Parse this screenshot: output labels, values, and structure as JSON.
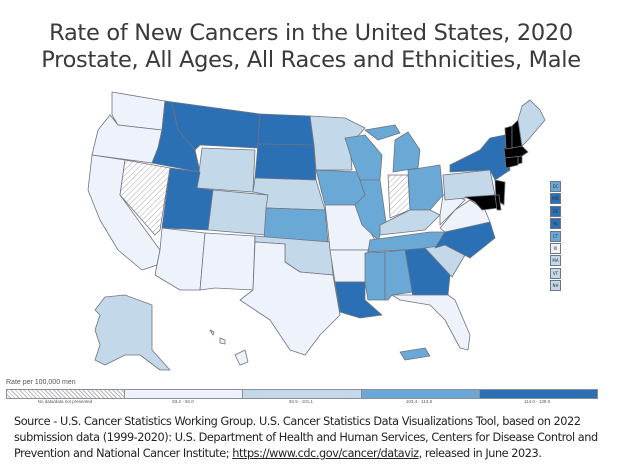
{
  "title_line1": "Rate of New Cancers in the United States, 2020",
  "title_line2": "Prostate, All Ages, All Races and Ethnicities, Male",
  "legend": {
    "title": "Rate per 100,000 men",
    "bins": [
      {
        "label": "No data/data not presented",
        "color": "hatch"
      },
      {
        "label": "83.2 - 92.0",
        "color": "#eef2fb"
      },
      {
        "label": "92.5 - 101.1",
        "color": "#c3d8e8"
      },
      {
        "label": "103.4 - 113.5",
        "color": "#6aa9d6"
      },
      {
        "label": "114.0 - 139.0",
        "color": "#2b70b5"
      }
    ]
  },
  "small_state_boxes": [
    {
      "abbr": "DC",
      "bin": 3
    },
    {
      "abbr": "MD",
      "bin": 4
    },
    {
      "abbr": "DE",
      "bin": 4
    },
    {
      "abbr": "NJ",
      "bin": 4
    },
    {
      "abbr": "CT",
      "bin": 3
    },
    {
      "abbr": "RI",
      "bin": 1
    },
    {
      "abbr": "MA",
      "bin": 2
    },
    {
      "abbr": "VT",
      "bin": 2
    },
    {
      "abbr": "NH",
      "bin": 2
    }
  ],
  "state_bins": {
    "WA": 1,
    "OR": 1,
    "CA": 1,
    "NV": 0,
    "ID": 4,
    "MT": 4,
    "WY": 2,
    "UT": 4,
    "CO": 2,
    "AZ": 1,
    "NM": 1,
    "ND": 4,
    "SD": 4,
    "NE": 2,
    "KS": 3,
    "OK": 2,
    "TX": 1,
    "MN": 2,
    "IA": 3,
    "MO": 1,
    "AR": 1,
    "LA": 4,
    "WI": 3,
    "IL": 3,
    "MI": 3,
    "IN": 0,
    "OH": 3,
    "KY": 2,
    "TN": 3,
    "MS": 3,
    "AL": 3,
    "GA": 4,
    "FL": 1,
    "SC": 2,
    "NC": 4,
    "VA": 1,
    "WV": 1,
    "PA": 2,
    "NY": 4,
    "ME": 2,
    "AK": 2,
    "HI": 1,
    "PR": 3
  },
  "source": {
    "text_before": "Source - U.S. Cancer Statistics Working Group. U.S. Cancer Statistics Data Visualizations Tool, based on 2022 submission data (1999-2020): U.S. Department of Health and Human Services, Centers for Disease Control and Prevention and National Cancer Institute; ",
    "link": "https://www.cdc.gov/cancer/dataviz",
    "text_after": ", released in June 2023."
  }
}
